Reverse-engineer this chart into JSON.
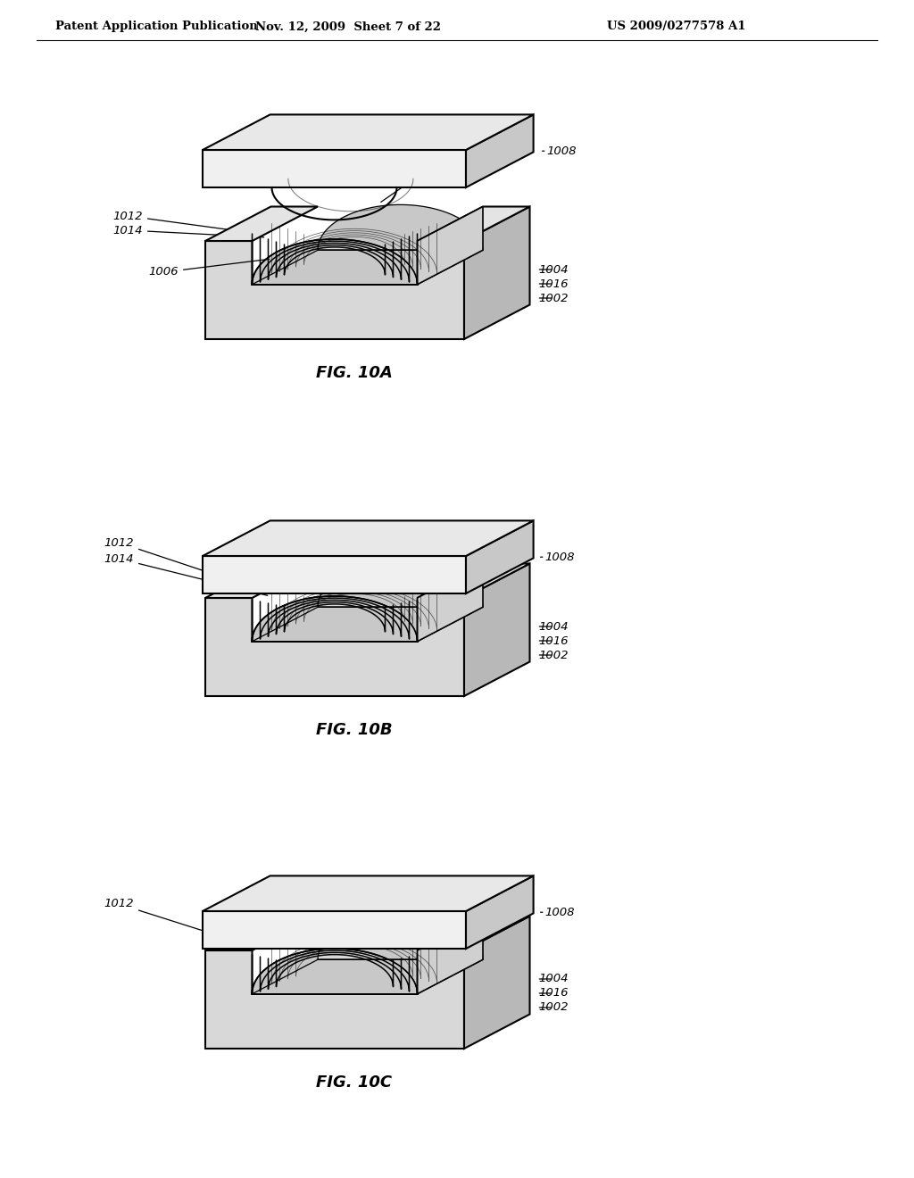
{
  "bg_color": "#ffffff",
  "line_color": "#000000",
  "header_left": "Patent Application Publication",
  "header_mid": "Nov. 12, 2009  Sheet 7 of 22",
  "header_right": "US 2009/0277578 A1",
  "fig_labels": [
    "FIG. 10A",
    "FIG. 10B",
    "FIG. 10C"
  ],
  "lw_edge": 1.5,
  "lw_layer": 1.1,
  "top_plate_color": "#f0f0f0",
  "top_plate_side_color": "#c8c8c8",
  "top_plate_top_color": "#e8e8e8",
  "mold_front_color": "#d8d8d8",
  "mold_side_color": "#b8b8b8",
  "mold_top_color": "#e4e4e4",
  "mold_inside_color": "#d0d0d0",
  "skx": 0.42,
  "sky": 0.22
}
